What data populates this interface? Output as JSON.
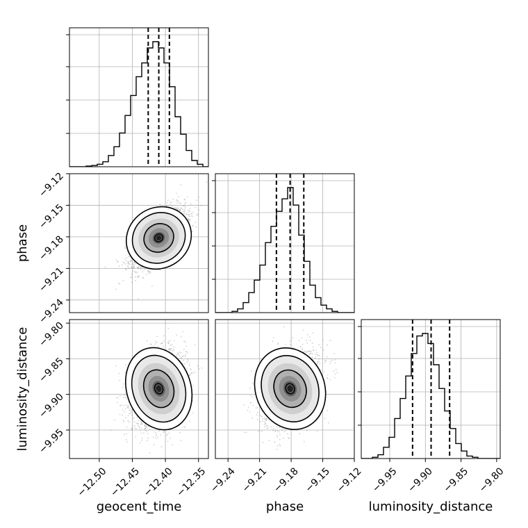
{
  "chart_data": {
    "type": "corner",
    "parameters": [
      "geocent_time",
      "phase",
      "luminosity_distance"
    ],
    "grid": true,
    "ranges": {
      "geocent_time": [
        -12.545,
        -12.335
      ],
      "phase": [
        -9.252,
        -9.12
      ],
      "luminosity_distance": [
        -9.99,
        -9.795
      ]
    },
    "ticks": {
      "geocent_time": {
        "values": [
          -12.5,
          -12.45,
          -12.4,
          -12.35
        ],
        "labels": [
          "−12.50",
          "−12.45",
          "−12.40",
          "−12.35"
        ]
      },
      "phase": {
        "values": [
          -9.24,
          -9.21,
          -9.18,
          -9.15,
          -9.12
        ],
        "labels": [
          "−9.24",
          "−9.21",
          "−9.18",
          "−9.15",
          "−9.12"
        ]
      },
      "luminosity_distance": {
        "values": [
          -9.95,
          -9.9,
          -9.85,
          -9.8
        ],
        "labels": [
          "−9.95",
          "−9.90",
          "−9.85",
          "−9.80"
        ]
      }
    },
    "quantiles": {
      "geocent_time": [
        -12.426,
        -12.41,
        -12.394
      ],
      "phase": [
        -9.194,
        -9.181,
        -9.168
      ],
      "luminosity_distance": [
        -9.918,
        -9.892,
        -9.866
      ]
    },
    "histograms": {
      "geocent_time": [
        0,
        0,
        0,
        0.5,
        1,
        2,
        4,
        9,
        16,
        27,
        41,
        57,
        72,
        83,
        95,
        100,
        95,
        83,
        64,
        40,
        26,
        13,
        5,
        2,
        0
      ],
      "phase": [
        0,
        0,
        0,
        1,
        3,
        8,
        16,
        26,
        38,
        56,
        69,
        81,
        91,
        100,
        86,
        62,
        41,
        22,
        12,
        6,
        3,
        1,
        0,
        0,
        0
      ],
      "luminosity_distance": [
        0,
        0,
        1,
        3,
        9,
        17,
        32,
        48,
        66,
        84,
        98,
        100,
        92,
        75,
        56,
        38,
        24,
        12,
        6,
        2,
        1,
        0,
        0,
        0,
        0
      ]
    },
    "scatter": [
      {
        "x": "geocent_time",
        "y": "phase",
        "center": [
          -12.41,
          -9.181
        ],
        "sd": [
          0.02,
          0.0135
        ],
        "rho": 0.6
      },
      {
        "x": "geocent_time",
        "y": "luminosity_distance",
        "center": [
          -12.41,
          -9.892
        ],
        "sd": [
          0.02,
          0.025
        ],
        "rho": 0.25
      },
      {
        "x": "phase",
        "y": "luminosity_distance",
        "center": [
          -9.181,
          -9.892
        ],
        "sd": [
          0.0135,
          0.025
        ],
        "rho": 0.3
      }
    ]
  }
}
